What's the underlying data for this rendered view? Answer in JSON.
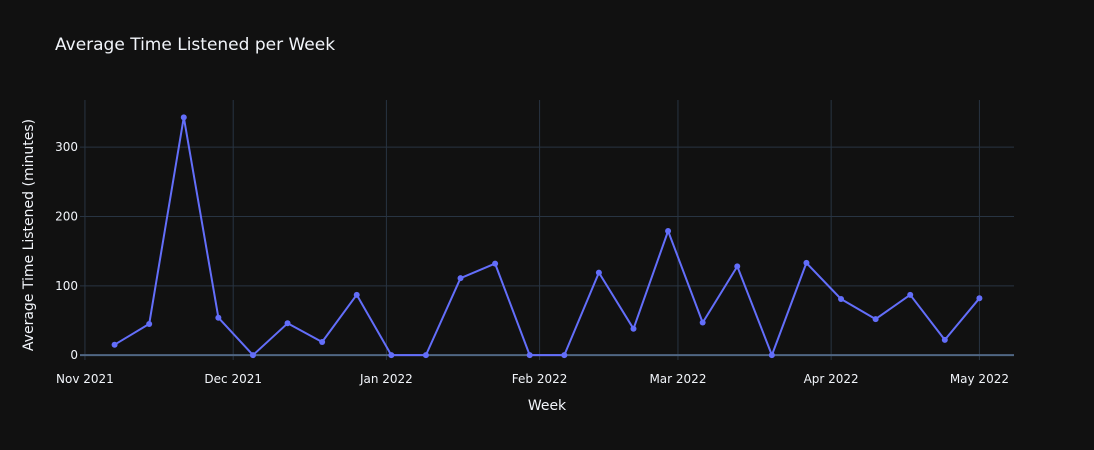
{
  "chart_data": {
    "type": "line",
    "title": "Average Time Listened per Week",
    "xlabel": "Week",
    "ylabel": "Average Time Listened (minutes)",
    "x_ticks": [
      "Nov 2021",
      "Dec 2021",
      "Jan 2022",
      "Feb 2022",
      "Mar 2022",
      "Apr 2022",
      "May 2022"
    ],
    "y_ticks": [
      0,
      100,
      200,
      300
    ],
    "xlim": [
      "2021-10-31",
      "2022-05-08"
    ],
    "ylim": [
      -7,
      368
    ],
    "grid": true,
    "legend": "none",
    "line_color": "#636efa",
    "series": [
      {
        "x": [
          "2021-11-07",
          "2021-11-14",
          "2021-11-21",
          "2021-11-28",
          "2021-12-05",
          "2021-12-12",
          "2021-12-19",
          "2021-12-26",
          "2022-01-02",
          "2022-01-09",
          "2022-01-16",
          "2022-01-23",
          "2022-01-30",
          "2022-02-06",
          "2022-02-13",
          "2022-02-20",
          "2022-02-27",
          "2022-03-06",
          "2022-03-13",
          "2022-03-20",
          "2022-03-27",
          "2022-04-03",
          "2022-04-10",
          "2022-04-17",
          "2022-04-24",
          "2022-05-01"
        ],
        "values": [
          15,
          45,
          343,
          54,
          0,
          46,
          19,
          87,
          0,
          0,
          111,
          132,
          0,
          0,
          119,
          38,
          179,
          47,
          128,
          0,
          133,
          81,
          52,
          87,
          22,
          82
        ]
      }
    ]
  }
}
